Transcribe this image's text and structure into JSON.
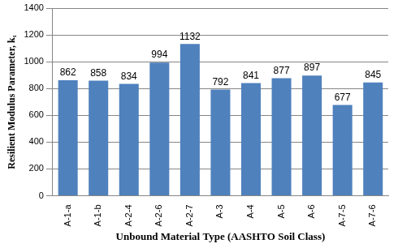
{
  "chart_data": {
    "type": "bar",
    "x_label": "Unbound Material Type (AASHTO Soil Class)",
    "y_label": "Resilient Modulus Parameter, k₁",
    "categories": [
      "A-1-a",
      "A-1-b",
      "A-2-4",
      "A-2-6",
      "A-2-7",
      "A-3",
      "A-4",
      "A-5",
      "A-6",
      "A-7-5",
      "A-7-6"
    ],
    "values": [
      862,
      858,
      834,
      994,
      1132,
      792,
      841,
      877,
      897,
      677,
      845
    ],
    "color": "#4f81bd",
    "ylim": [
      0,
      1400
    ],
    "yticks": [
      0,
      200,
      400,
      600,
      800,
      1000,
      1200,
      1400
    ],
    "grid": true,
    "data_labels": true
  }
}
